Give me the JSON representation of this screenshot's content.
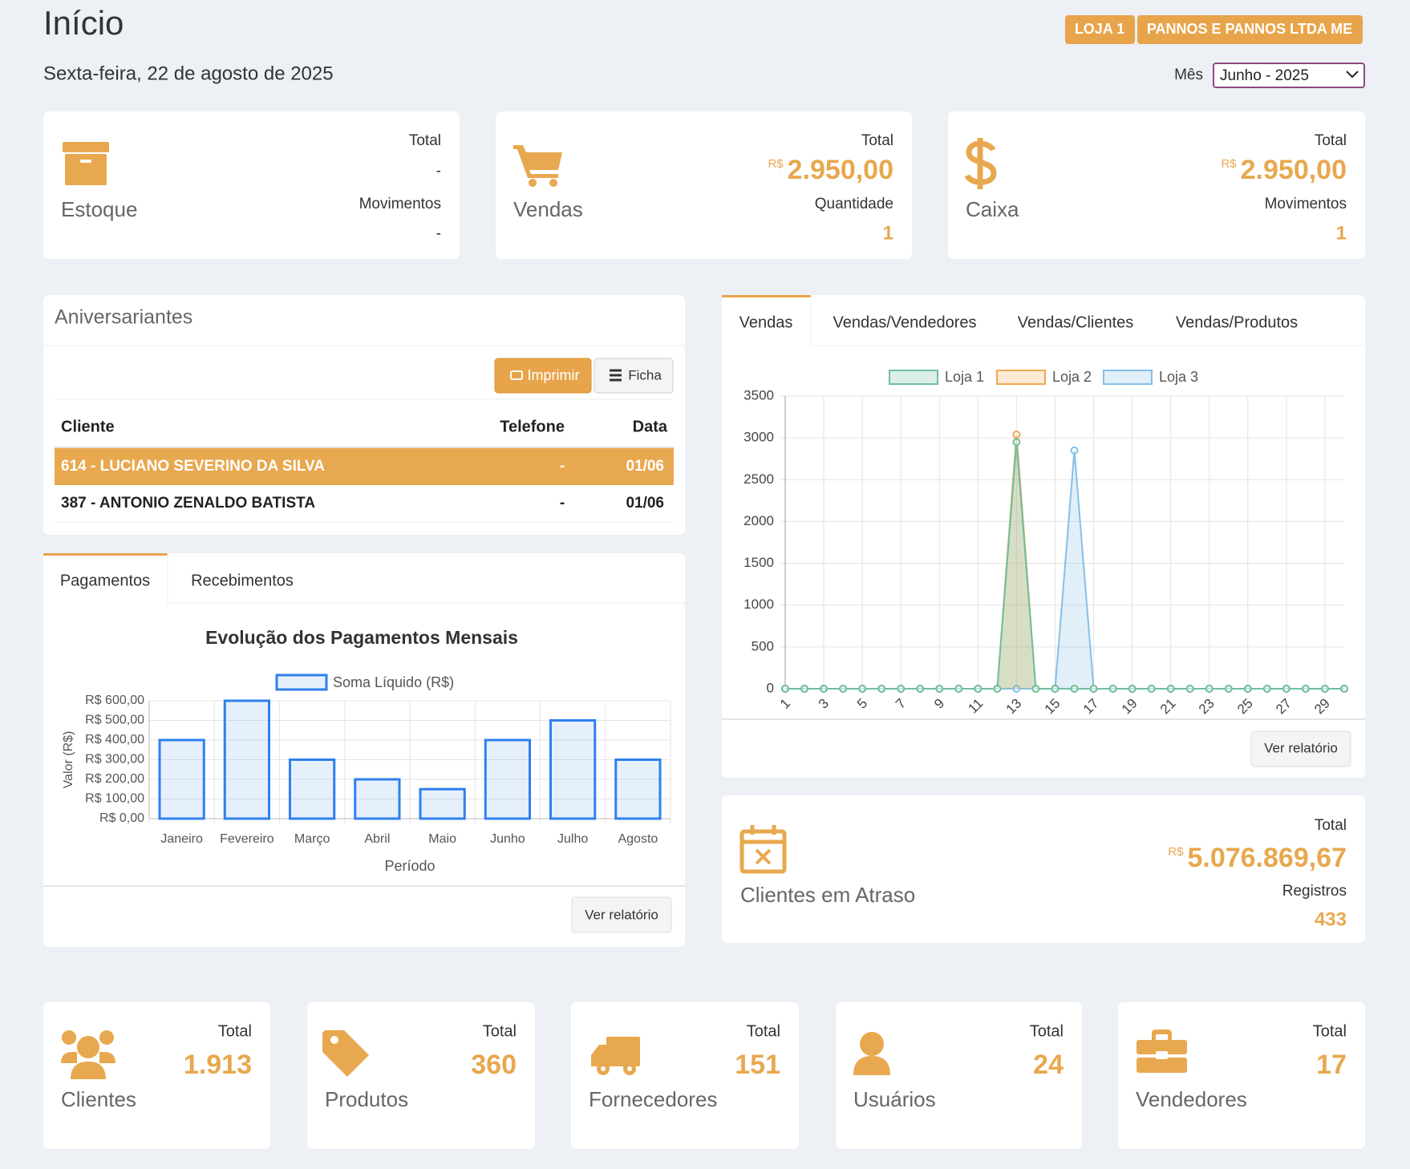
{
  "header": {
    "title": "Início",
    "date": "Sexta-feira, 22 de agosto de 2025",
    "badges": [
      "LOJA 1",
      "PANNOS E PANNOS LTDA ME"
    ],
    "month_label": "Mês",
    "month_selected": "Junho - 2025"
  },
  "summary_cards": [
    {
      "label": "Estoque",
      "fields": [
        {
          "label": "Total",
          "value": "-"
        },
        {
          "label": "Movimentos",
          "value": "-"
        }
      ]
    },
    {
      "label": "Vendas",
      "fields": [
        {
          "label": "Total",
          "currency": "R$",
          "value": "2.950,00"
        },
        {
          "label": "Quantidade",
          "value": "1"
        }
      ]
    },
    {
      "label": "Caixa",
      "fields": [
        {
          "label": "Total",
          "currency": "R$",
          "value": "2.950,00"
        },
        {
          "label": "Movimentos",
          "value": "1"
        }
      ]
    }
  ],
  "birthdays": {
    "title": "Aniversariantes",
    "buttons": [
      "Imprimir",
      "Ficha"
    ],
    "columns": [
      "Cliente",
      "Telefone",
      "Data"
    ],
    "rows": [
      [
        "614 - LUCIANO SEVERINO DA SILVA",
        "-",
        "01/06"
      ],
      [
        "387 - ANTONIO ZENALDO BATISTA",
        "-",
        "01/06"
      ]
    ]
  },
  "payments": {
    "tabs": [
      "Pagamentos",
      "Recebimentos"
    ],
    "button": "Ver relatório",
    "chart_data": {
      "type": "bar",
      "title": "Evolução dos Pagamentos Mensais",
      "x_label": "Período",
      "y_label": "Valor (R$)",
      "categories": [
        "Janeiro",
        "Fevereiro",
        "Março",
        "Abril",
        "Maio",
        "Junho",
        "Julho",
        "Agosto"
      ],
      "series": [
        {
          "name": "Soma Líquido (R$)",
          "color": "#2f80ed",
          "values": [
            400,
            600,
            300,
            200,
            150,
            400,
            500,
            300
          ]
        }
      ],
      "ylim": [
        0,
        600
      ],
      "yticks": [
        {
          "value": 0,
          "label": "R$ 0,00"
        },
        {
          "value": 100,
          "label": "R$ 100,00"
        },
        {
          "value": 200,
          "label": "R$ 200,00"
        },
        {
          "value": 300,
          "label": "R$ 300,00"
        },
        {
          "value": 400,
          "label": "R$ 400,00"
        },
        {
          "value": 500,
          "label": "R$ 500,00"
        },
        {
          "value": 600,
          "label": "R$ 600,00"
        }
      ],
      "grid": true
    }
  },
  "sales": {
    "tabs": [
      "Vendas",
      "Vendas/Vendedores",
      "Vendas/Clientes",
      "Vendas/Produtos"
    ],
    "button": "Ver relatório",
    "chart_data": {
      "type": "line",
      "x": [
        1,
        2,
        3,
        4,
        5,
        6,
        7,
        8,
        9,
        10,
        11,
        12,
        13,
        14,
        15,
        16,
        17,
        18,
        19,
        20,
        21,
        22,
        23,
        24,
        25,
        26,
        27,
        28,
        29,
        30
      ],
      "series": [
        {
          "name": "Loja 1",
          "color": "#6fbf9f",
          "values": [
            0,
            0,
            0,
            0,
            0,
            0,
            0,
            0,
            0,
            0,
            0,
            0,
            2950,
            0,
            0,
            0,
            0,
            0,
            0,
            0,
            0,
            0,
            0,
            0,
            0,
            0,
            0,
            0,
            0,
            0
          ]
        },
        {
          "name": "Loja 2",
          "color": "#eea84e",
          "values": [
            0,
            0,
            0,
            0,
            0,
            0,
            0,
            0,
            0,
            0,
            0,
            0,
            3040,
            0,
            0,
            0,
            0,
            0,
            0,
            0,
            0,
            0,
            0,
            0,
            0,
            0,
            0,
            0,
            0,
            0
          ]
        },
        {
          "name": "Loja 3",
          "color": "#86bfe8",
          "values": [
            0,
            0,
            0,
            0,
            0,
            0,
            0,
            0,
            0,
            0,
            0,
            0,
            0,
            0,
            0,
            2850,
            0,
            0,
            0,
            0,
            0,
            0,
            0,
            0,
            0,
            0,
            0,
            0,
            0,
            0
          ]
        }
      ],
      "xlim": [
        1,
        30
      ],
      "xticks": [
        1,
        3,
        5,
        7,
        9,
        11,
        13,
        15,
        17,
        19,
        21,
        23,
        25,
        27,
        29
      ],
      "ylim": [
        0,
        3500
      ],
      "yticks": [
        0,
        500,
        1000,
        1500,
        2000,
        2500,
        3000,
        3500
      ],
      "grid": true
    }
  },
  "overdue": {
    "label": "Clientes em Atraso",
    "fields": [
      {
        "label": "Total",
        "currency": "R$",
        "value": "5.076.869,67"
      },
      {
        "label": "Registros",
        "value": "433"
      }
    ]
  },
  "stats": [
    {
      "label": "Clientes",
      "total_label": "Total",
      "value": "1.913"
    },
    {
      "label": "Produtos",
      "total_label": "Total",
      "value": "360"
    },
    {
      "label": "Fornecedores",
      "total_label": "Total",
      "value": "151"
    },
    {
      "label": "Usuários",
      "total_label": "Total",
      "value": "24"
    },
    {
      "label": "Vendedores",
      "total_label": "Total",
      "value": "17"
    }
  ]
}
